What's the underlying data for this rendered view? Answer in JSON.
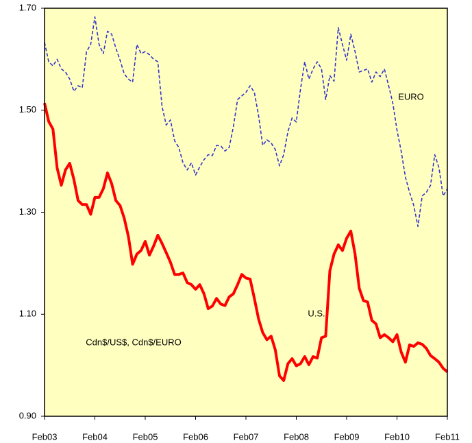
{
  "chart_data": {
    "type": "line",
    "annotation": "Cdn$/US$, Cdn$/EURO",
    "x": [
      "2003-02",
      "2003-03",
      "2003-04",
      "2003-05",
      "2003-06",
      "2003-07",
      "2003-08",
      "2003-09",
      "2003-10",
      "2003-11",
      "2003-12",
      "2004-01",
      "2004-02",
      "2004-03",
      "2004-04",
      "2004-05",
      "2004-06",
      "2004-07",
      "2004-08",
      "2004-09",
      "2004-10",
      "2004-11",
      "2004-12",
      "2005-01",
      "2005-02",
      "2005-03",
      "2005-04",
      "2005-05",
      "2005-06",
      "2005-07",
      "2005-08",
      "2005-09",
      "2005-10",
      "2005-11",
      "2005-12",
      "2006-01",
      "2006-02",
      "2006-03",
      "2006-04",
      "2006-05",
      "2006-06",
      "2006-07",
      "2006-08",
      "2006-09",
      "2006-10",
      "2006-11",
      "2006-12",
      "2007-01",
      "2007-02",
      "2007-03",
      "2007-04",
      "2007-05",
      "2007-06",
      "2007-07",
      "2007-08",
      "2007-09",
      "2007-10",
      "2007-11",
      "2007-12",
      "2008-01",
      "2008-02",
      "2008-03",
      "2008-04",
      "2008-05",
      "2008-06",
      "2008-07",
      "2008-08",
      "2008-09",
      "2008-10",
      "2008-11",
      "2008-12",
      "2009-01",
      "2009-02",
      "2009-03",
      "2009-04",
      "2009-05",
      "2009-06",
      "2009-07",
      "2009-08",
      "2009-09",
      "2009-10",
      "2009-11",
      "2009-12",
      "2010-01",
      "2010-02",
      "2010-03",
      "2010-04",
      "2010-05",
      "2010-06",
      "2010-07",
      "2010-08",
      "2010-09",
      "2010-10",
      "2010-11",
      "2010-12",
      "2011-01",
      "2011-02"
    ],
    "series": [
      {
        "name": "EURO",
        "color": "#3333cc",
        "dashed": true,
        "values": [
          1.633,
          1.595,
          1.587,
          1.6,
          1.581,
          1.575,
          1.561,
          1.537,
          1.548,
          1.544,
          1.615,
          1.629,
          1.683,
          1.629,
          1.611,
          1.655,
          1.649,
          1.622,
          1.598,
          1.571,
          1.561,
          1.555,
          1.629,
          1.611,
          1.615,
          1.609,
          1.6,
          1.595,
          1.508,
          1.471,
          1.481,
          1.44,
          1.427,
          1.397,
          1.383,
          1.397,
          1.373,
          1.389,
          1.403,
          1.413,
          1.411,
          1.431,
          1.43,
          1.42,
          1.427,
          1.467,
          1.521,
          1.528,
          1.535,
          1.548,
          1.535,
          1.49,
          1.431,
          1.442,
          1.436,
          1.423,
          1.391,
          1.413,
          1.458,
          1.485,
          1.477,
          1.541,
          1.595,
          1.561,
          1.581,
          1.595,
          1.581,
          1.521,
          1.568,
          1.557,
          1.662,
          1.629,
          1.598,
          1.649,
          1.615,
          1.575,
          1.578,
          1.581,
          1.555,
          1.575,
          1.566,
          1.581,
          1.548,
          1.514,
          1.461,
          1.42,
          1.369,
          1.339,
          1.313,
          1.272,
          1.332,
          1.339,
          1.353,
          1.413,
          1.387,
          1.332,
          1.346
        ]
      },
      {
        "name": "U.S.",
        "color": "#ff0000",
        "dashed": false,
        "values": [
          1.514,
          1.478,
          1.463,
          1.387,
          1.353,
          1.383,
          1.396,
          1.364,
          1.323,
          1.315,
          1.315,
          1.296,
          1.329,
          1.329,
          1.346,
          1.377,
          1.356,
          1.323,
          1.313,
          1.288,
          1.252,
          1.198,
          1.218,
          1.225,
          1.243,
          1.216,
          1.234,
          1.255,
          1.239,
          1.221,
          1.202,
          1.178,
          1.178,
          1.181,
          1.162,
          1.158,
          1.149,
          1.158,
          1.14,
          1.111,
          1.116,
          1.131,
          1.12,
          1.117,
          1.134,
          1.14,
          1.158,
          1.178,
          1.171,
          1.169,
          1.131,
          1.091,
          1.064,
          1.05,
          1.057,
          1.03,
          0.979,
          0.97,
          1.003,
          1.013,
          0.999,
          1.003,
          1.017,
          1.001,
          1.017,
          1.014,
          1.054,
          1.057,
          1.185,
          1.218,
          1.236,
          1.225,
          1.249,
          1.263,
          1.218,
          1.151,
          1.127,
          1.124,
          1.088,
          1.081,
          1.054,
          1.06,
          1.054,
          1.046,
          1.06,
          1.026,
          1.006,
          1.04,
          1.037,
          1.044,
          1.041,
          1.033,
          1.019,
          1.013,
          1.006,
          0.994,
          0.987
        ]
      }
    ],
    "xlim": [
      "2003-02",
      "2011-02"
    ],
    "xticks": [
      {
        "value": "2003-02",
        "label": "Feb03"
      },
      {
        "value": "2004-02",
        "label": "Feb04"
      },
      {
        "value": "2005-02",
        "label": "Feb05"
      },
      {
        "value": "2006-02",
        "label": "Feb06"
      },
      {
        "value": "2007-02",
        "label": "Feb07"
      },
      {
        "value": "2008-02",
        "label": "Feb08"
      },
      {
        "value": "2009-02",
        "label": "Feb09"
      },
      {
        "value": "2010-02",
        "label": "Feb10"
      },
      {
        "value": "2011-02",
        "label": "Feb11"
      }
    ],
    "ylim": [
      0.9,
      1.7
    ],
    "yticks": [
      {
        "value": 0.9,
        "label": "0.90"
      },
      {
        "value": 1.1,
        "label": "1.10"
      },
      {
        "value": 1.3,
        "label": "1.30"
      },
      {
        "value": 1.5,
        "label": "1.50"
      },
      {
        "value": 1.7,
        "label": "1.70"
      }
    ],
    "grid": false,
    "plot_background": "#ffffc0"
  }
}
